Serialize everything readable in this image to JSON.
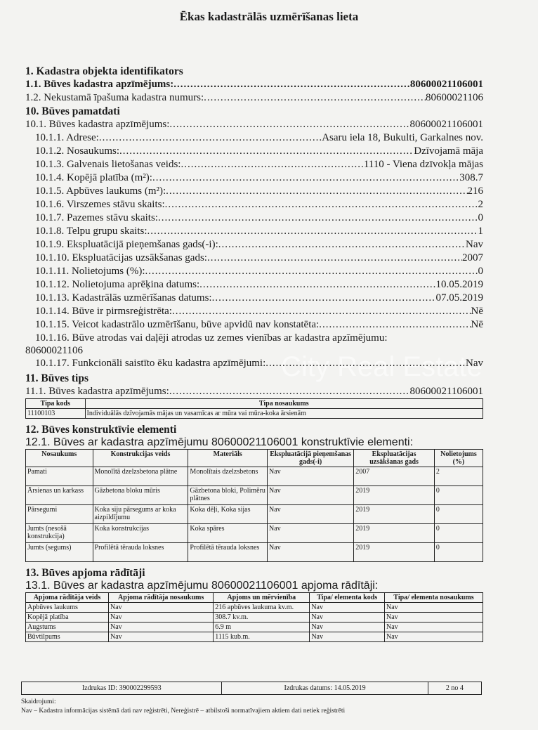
{
  "title": "Ēkas kadastrālās uzmērīšanas lieta",
  "s1": {
    "heading": "1. Kadastra objekta identifikators",
    "lines": [
      {
        "label": "1.1. Būves kadastra apzīmējums:",
        "value": "80600021106001",
        "bold": true
      },
      {
        "label": "1.2. Nekustamā īpašuma kadastra numurs:",
        "value": "80600021106"
      }
    ]
  },
  "s10": {
    "heading": "10. Būves pamatdati",
    "l0": {
      "label": "10.1. Būves kadastra apzīmējums:",
      "value": "80600021106001"
    },
    "lines": [
      {
        "label": "10.1.1. Adrese:",
        "value": "Asaru iela 18, Bukulti, Garkalnes nov."
      },
      {
        "label": "10.1.2. Nosaukums:",
        "value": "Dzīvojamā māja"
      },
      {
        "label": "10.1.3. Galvenais lietošanas veids:",
        "value": "1110 - Viena dzīvokļa mājas"
      },
      {
        "label": "10.1.4. Kopējā platība (m²):",
        "value": "308.7"
      },
      {
        "label": "10.1.5. Apbūves laukums (m²):",
        "value": "216"
      },
      {
        "label": "10.1.6. Virszemes stāvu skaits:",
        "value": "2"
      },
      {
        "label": "10.1.7. Pazemes stāvu skaits:",
        "value": "0"
      },
      {
        "label": "10.1.8. Telpu grupu skaits:",
        "value": "1"
      },
      {
        "label": "10.1.9. Ekspluatācijā pieņemšanas gads(-i):",
        "value": "Nav"
      },
      {
        "label": "10.1.10. Ekspluatācijas uzsākšanas gads:",
        "value": "2007"
      },
      {
        "label": "10.1.11. Nolietojums (%):",
        "value": "0"
      },
      {
        "label": "10.1.12. Nolietojuma aprēķina datums:",
        "value": "10.05.2019"
      },
      {
        "label": "10.1.13. Kadastrālās uzmērīšanas datums:",
        "value": "07.05.2019"
      },
      {
        "label": "10.1.14. Būve ir pirmsreģistrēta:",
        "value": "Nē"
      },
      {
        "label": "10.1.15. Veicot kadastrālo uzmērīšanu, būve apvidū nav konstatēta:",
        "value": "Nē"
      }
    ],
    "l16": {
      "label": "10.1.16. Būve atrodas vai daļēji atrodas uz zemes vienības ar kadastra apzīmējumu:",
      "value": "80600021106"
    },
    "l17": {
      "label": "10.1.17. Funkcionāli saistīto ēku kadastra apzīmējumi:",
      "value": "Nav"
    }
  },
  "s11": {
    "heading": "11. Būves tips",
    "line": {
      "label": "11.1. Būves kadastra apzīmējums:",
      "value": "80600021106001"
    },
    "headers": [
      "Tipa kods",
      "Tipa nosaukums"
    ],
    "rows": [
      [
        "11100103",
        "Individuālās dzīvojamās mājas un vasarnīcas ar mūra vai mūra-koka ārsienām"
      ]
    ]
  },
  "s12": {
    "heading": "12. Būves konstruktīvie elementi",
    "sub": "12.1. Būves ar kadastra apzīmējumu 80600021106001 konstruktīvie elementi:",
    "headers": [
      "Nosaukums",
      "Konstrukcijas veids",
      "Materiāls",
      "Ekspluatācijā pieņemšanas gads(-i)",
      "Ekspluatācijas uzsākšanas gads",
      "Nolietojums (%)"
    ],
    "rows": [
      [
        "Pamati",
        "Monolītā dzelzsbetona plātne",
        "Monolītais dzelzsbetons",
        "Nav",
        "2007",
        "2"
      ],
      [
        "Ārsienas un karkass",
        "Gāzbetona bloku mūris",
        "Gāzbetona bloki, Polimēru plātnes",
        "Nav",
        "2019",
        "0"
      ],
      [
        "Pārsegumi",
        "Koka siju pārsegums ar koka aizpildījumu",
        "Koka dēļi, Koka sijas",
        "Nav",
        "2019",
        "0"
      ],
      [
        "Jumts (nesošā konstrukcija)",
        "Koka konstrukcijas",
        "Koka spāres",
        "Nav",
        "2019",
        "0"
      ],
      [
        "Jumts (segums)",
        "Profilētā tērauda loksnes",
        "Profilētā tērauda loksnes",
        "Nav",
        "2019",
        "0"
      ]
    ]
  },
  "s13": {
    "heading": "13. Būves apjoma rādītāji",
    "sub": "13.1. Būves ar kadastra apzīmējumu 80600021106001 apjoma rādītāji:",
    "headers": [
      "Apjoma rādītāja veids",
      "Apjoma rādītāja nosaukums",
      "Apjoms un mērvienība",
      "Tipa/ elementa kods",
      "Tipa/ elementa nosaukums"
    ],
    "rows": [
      [
        "Apbūves laukums",
        "Nav",
        "216 apbūves laukuma kv.m.",
        "Nav",
        "Nav"
      ],
      [
        "Kopējā platība",
        "Nav",
        "308.7 kv.m.",
        "Nav",
        "Nav"
      ],
      [
        "Augstums",
        "Nav",
        "6.9 m",
        "Nav",
        "Nav"
      ],
      [
        "Būvtilpums",
        "Nav",
        "1115 kub.m.",
        "Nav",
        "Nav"
      ]
    ]
  },
  "footer": {
    "id": "Izdrukas ID: 390002299593",
    "date": "Izdrukas datums: 14.05.2019",
    "page": "2 no 4"
  },
  "notes": {
    "title": "Skaidrojumi:",
    "text": "Nav – Kadastra informācijas sistēmā dati nav reģistrēti, Nereģistrē – atbilstoši normatīvajiem aktiem dati netiek reģistrēti"
  },
  "watermark": "City Real Estate"
}
